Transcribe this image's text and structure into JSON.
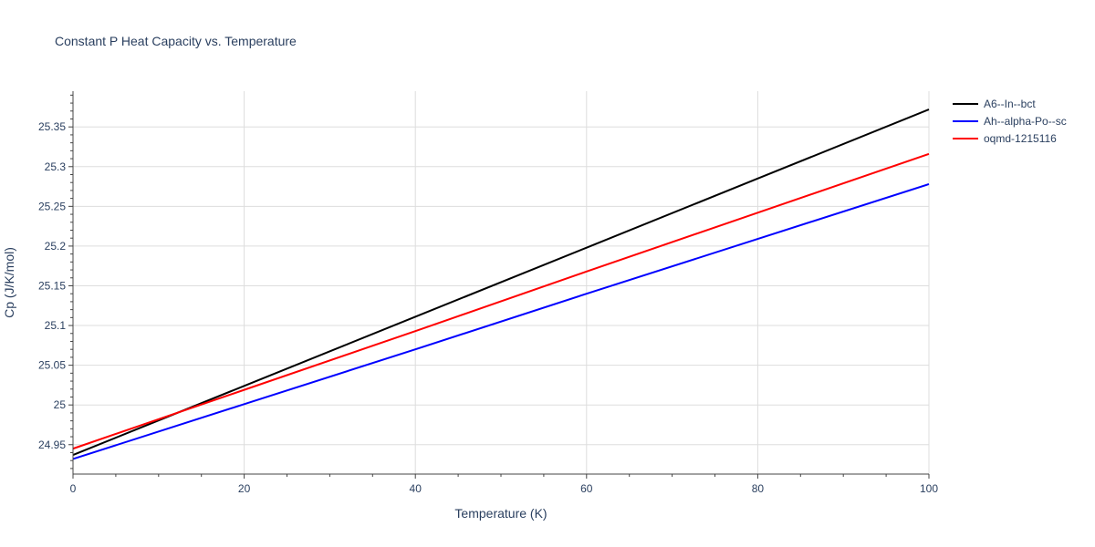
{
  "chart_data": {
    "type": "line",
    "title": "Constant P Heat Capacity vs. Temperature",
    "xlabel": "Temperature (K)",
    "ylabel": "Cp (J/K/mol)",
    "xlim": [
      0,
      100
    ],
    "ylim": [
      24.913,
      25.395
    ],
    "grid": true,
    "legend_position": "top-right",
    "x_ticks": [
      0,
      20,
      40,
      60,
      80,
      100
    ],
    "x_tick_labels": [
      "0",
      "20",
      "40",
      "60",
      "80",
      "100"
    ],
    "y_ticks": [
      24.95,
      25.0,
      25.05,
      25.1,
      25.15,
      25.2,
      25.25,
      25.3,
      25.35
    ],
    "y_tick_labels": [
      "24.95",
      "25",
      "25.05",
      "25.1",
      "25.15",
      "25.2",
      "25.25",
      "25.3",
      "25.35"
    ],
    "x": [
      0,
      20,
      40,
      60,
      80,
      100
    ],
    "series": [
      {
        "name": "A6--In--bct",
        "color": "#000000",
        "values": [
          24.937,
          25.024,
          25.111,
          25.198,
          25.285,
          25.372
        ]
      },
      {
        "name": "Ah--alpha-Po--sc",
        "color": "#0000ff",
        "values": [
          24.932,
          25.001,
          25.07,
          25.14,
          25.209,
          25.278
        ]
      },
      {
        "name": "oqmd-1215116",
        "color": "#ff0000",
        "values": [
          24.945,
          25.019,
          25.093,
          25.168,
          25.242,
          25.316
        ]
      }
    ]
  }
}
